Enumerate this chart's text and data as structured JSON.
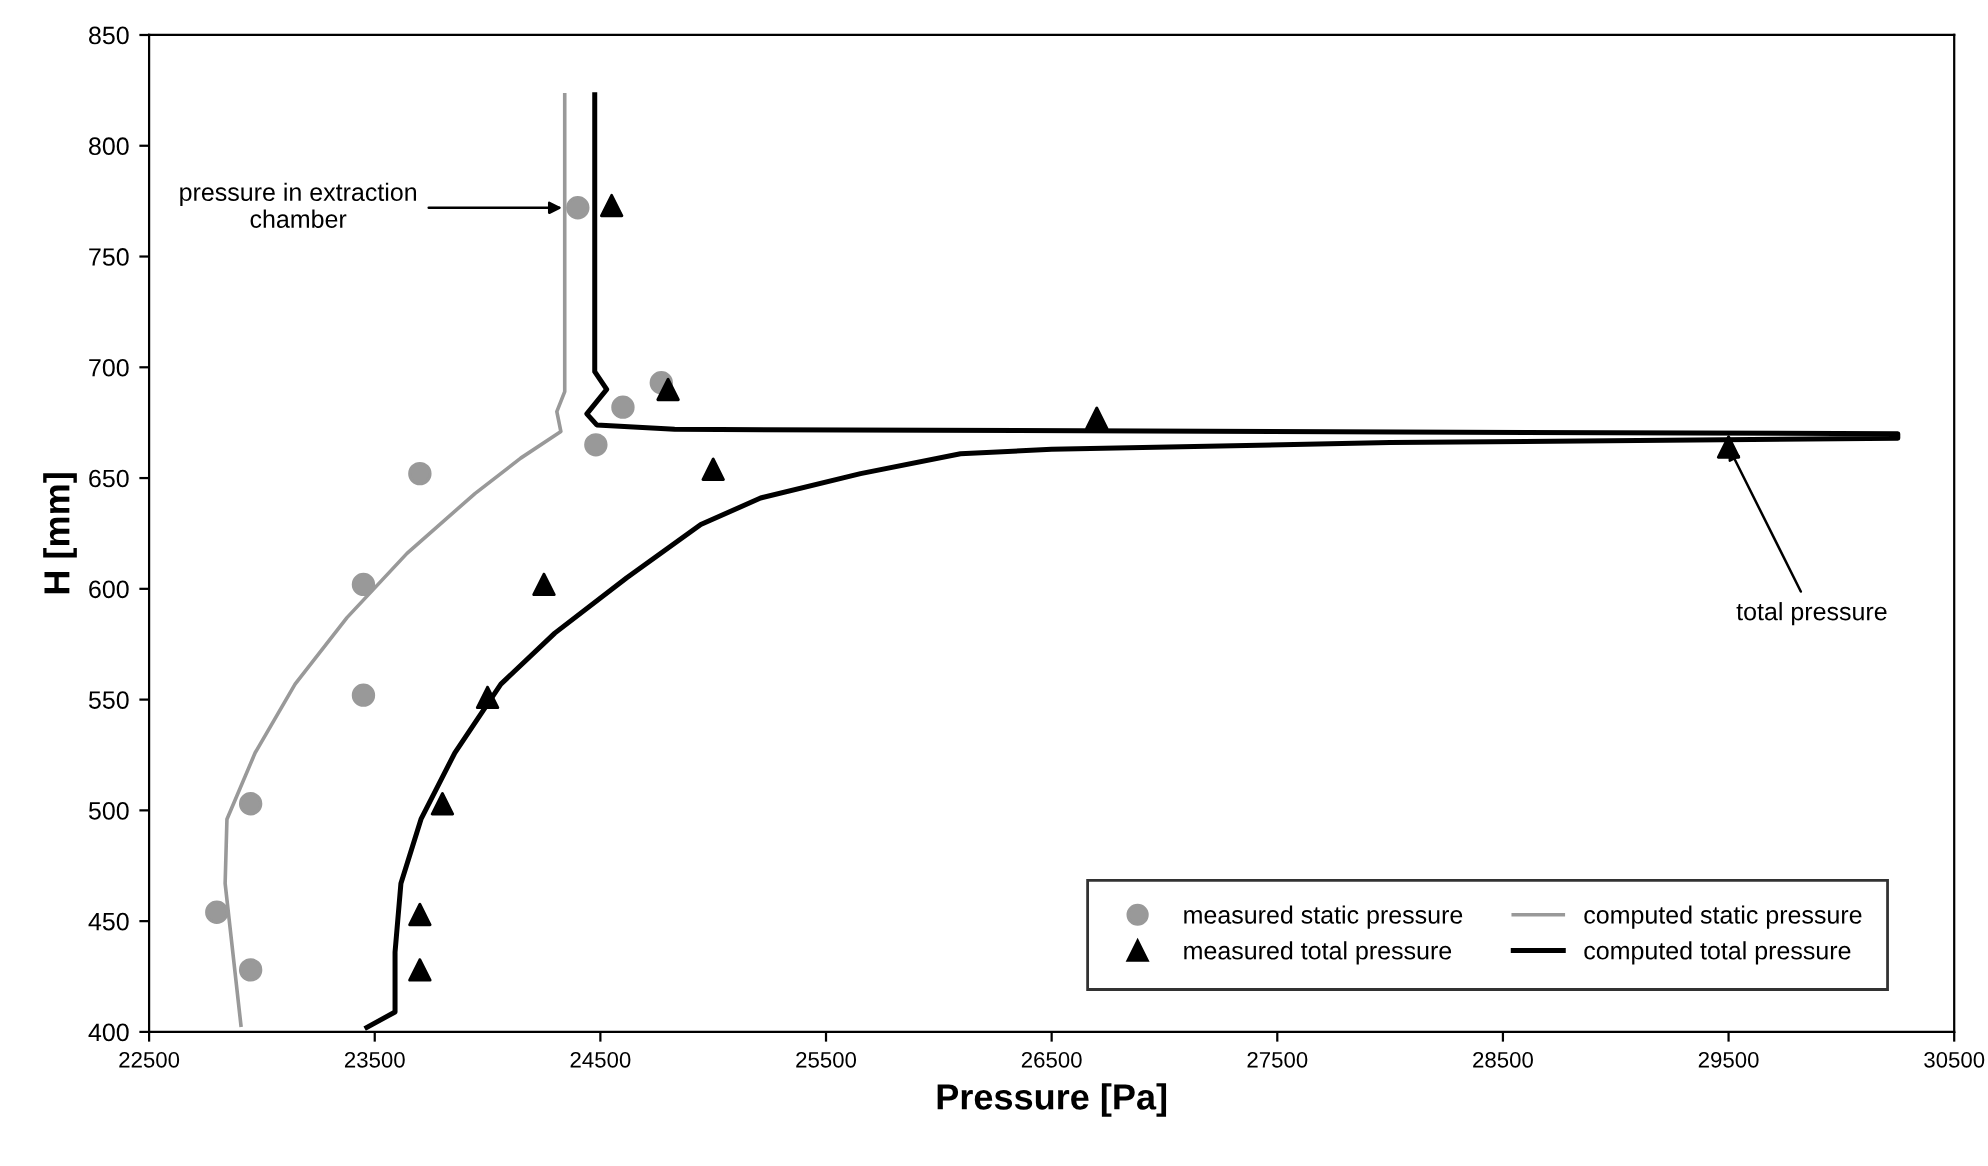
{
  "chart_data": {
    "type": "scatter",
    "xlabel": "Pressure [Pa]",
    "ylabel": "H [mm]",
    "xlim": [
      22500,
      30500
    ],
    "xticks": [
      22500,
      23500,
      24500,
      25500,
      26500,
      27500,
      28500,
      29500,
      30500
    ],
    "ylim": [
      400,
      850
    ],
    "yticks": [
      400,
      450,
      500,
      550,
      600,
      650,
      700,
      750,
      800,
      850
    ],
    "grid": false,
    "legend": "bottom right",
    "series": [
      {
        "name": "measured static pressure",
        "marker": "circle",
        "color": "#999999",
        "x": [
          24400,
          24600,
          24770,
          24480,
          23700,
          23450,
          23450,
          22950,
          22800,
          22950
        ],
        "values": [
          772,
          682,
          693,
          665,
          652,
          602,
          552,
          503,
          454,
          428
        ]
      },
      {
        "name": "measured total pressure",
        "marker": "triangle",
        "color": "#000000",
        "x": [
          24550,
          24800,
          26700,
          25000,
          29500,
          24250,
          24000,
          23800,
          23700,
          23700
        ],
        "values": [
          773,
          690,
          677,
          654,
          664,
          602,
          551,
          503,
          453,
          428
        ]
      },
      {
        "name": "computed static pressure",
        "type": "line",
        "marker": "none",
        "color": "#999999",
        "x": [
          22907,
          22837,
          22845,
          22970,
          23147,
          23377,
          23643,
          23944,
          24147,
          24325,
          24307,
          24342,
          24342,
          24342
        ],
        "values": [
          403,
          467,
          496,
          526,
          557,
          587,
          616,
          643,
          659,
          671,
          680,
          689,
          707,
          823
        ]
      },
      {
        "name": "computed total pressure",
        "type": "line",
        "marker": "none",
        "color": "#000000",
        "x": [
          24475,
          24475,
          24475,
          24528,
          24440,
          24484,
          24829,
          30250,
          30250,
          28000,
          26500,
          26096,
          25653,
          25210,
          24945,
          24617,
          24298,
          24059,
          23855,
          23705,
          23616,
          23590,
          23590,
          23465
        ],
        "values": [
          823,
          728,
          698,
          690,
          679,
          674,
          672,
          670,
          668,
          666,
          663,
          661,
          652,
          641,
          629,
          605,
          580,
          557,
          526,
          496,
          467,
          436,
          409,
          402
        ]
      }
    ],
    "annotations": [
      {
        "text": "pressure in extraction\nchamber",
        "x": 24330,
        "y": 772
      },
      {
        "text": "total pressure",
        "x": 29500,
        "y": 664
      }
    ]
  }
}
